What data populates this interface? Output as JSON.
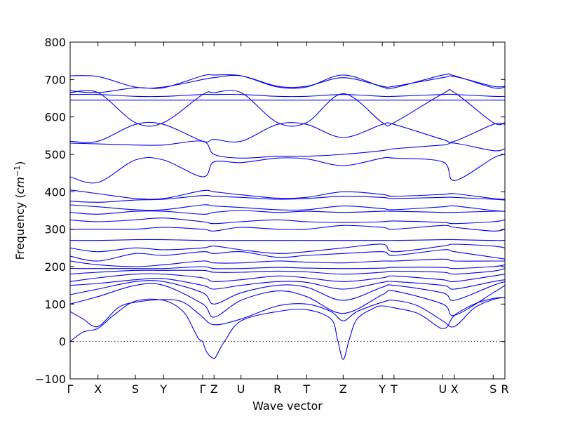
{
  "chart_data": {
    "type": "line",
    "xlabel": "Wave vector",
    "ylabel": "Frequency (cm⁻¹)",
    "ylim": [
      -100,
      800
    ],
    "yticks": [
      -100,
      0,
      100,
      200,
      300,
      400,
      500,
      600,
      700,
      800
    ],
    "xticks": [
      "Γ",
      "X",
      "S",
      "Y",
      "Γ",
      "Z",
      "U",
      "R",
      "T",
      "Z",
      "Y",
      "T",
      "U",
      "X",
      "S",
      "R"
    ],
    "xtick_positions": [
      0.0,
      0.064,
      0.15,
      0.215,
      0.305,
      0.331,
      0.393,
      0.477,
      0.544,
      0.628,
      0.718,
      0.745,
      0.857,
      0.884,
      0.973,
      1.0
    ],
    "zero_line": "dotted",
    "series_color": "#0000ee",
    "bands": [
      {
        "x": [
          0,
          0.0,
          0.064,
          0.15,
          0.215,
          0.305,
          0.331,
          0.393,
          0.477,
          0.544,
          0.628,
          0.718,
          0.745,
          0.857,
          0.884,
          0.973,
          1.0
        ],
        "y": null
      },
      {
        "x": [
          0.0,
          0.03,
          0.064,
          0.1,
          0.15,
          0.215,
          0.26,
          0.285,
          0.295,
          0.305
        ],
        "y": [
          0,
          25,
          35,
          70,
          108,
          110,
          80,
          30,
          8,
          0
        ]
      },
      {
        "x": [
          0.305,
          0.315,
          0.331,
          0.34,
          0.355,
          0.393,
          0.477,
          0.544,
          0.6,
          0.615,
          0.628,
          0.642,
          0.66,
          0.7,
          0.718,
          0.745,
          0.8,
          0.845,
          0.857,
          0.868,
          0.884,
          0.93,
          0.973,
          1.0
        ],
        "y": [
          0,
          -30,
          -45,
          -30,
          0,
          55,
          80,
          85,
          60,
          5,
          -48,
          5,
          60,
          90,
          95,
          90,
          75,
          40,
          35,
          40,
          70,
          100,
          115,
          118
        ]
      },
      {
        "x": [
          0.0,
          0.03,
          0.064,
          0.11,
          0.15,
          0.215,
          0.26,
          0.3,
          0.331,
          0.393,
          0.477,
          0.544,
          0.6,
          0.628,
          0.66,
          0.718,
          0.745,
          0.8,
          0.857,
          0.884,
          0.93,
          0.973,
          1.0
        ],
        "y": [
          80,
          60,
          40,
          90,
          105,
          112,
          105,
          70,
          45,
          60,
          95,
          100,
          80,
          55,
          80,
          105,
          110,
          95,
          55,
          40,
          90,
          112,
          118
        ]
      },
      {
        "x": [
          0.0,
          0.064,
          0.15,
          0.215,
          0.305,
          0.331,
          0.393,
          0.477,
          0.544,
          0.628,
          0.718,
          0.745,
          0.857,
          0.884,
          0.973,
          1.0
        ],
        "y": [
          100,
          120,
          150,
          150,
          100,
          65,
          110,
          135,
          120,
          75,
          125,
          135,
          100,
          70,
          130,
          150
        ]
      },
      {
        "x": [
          0.0,
          0.064,
          0.15,
          0.215,
          0.305,
          0.331,
          0.393,
          0.477,
          0.544,
          0.628,
          0.718,
          0.745,
          0.857,
          0.884,
          0.973,
          1.0
        ],
        "y": [
          125,
          140,
          160,
          160,
          130,
          100,
          130,
          150,
          145,
          110,
          145,
          150,
          130,
          110,
          150,
          160
        ]
      },
      {
        "x": [
          0.0,
          0.064,
          0.15,
          0.215,
          0.305,
          0.331,
          0.393,
          0.477,
          0.544,
          0.628,
          0.718,
          0.745,
          0.857,
          0.884,
          0.973,
          1.0
        ],
        "y": [
          150,
          155,
          165,
          168,
          150,
          140,
          150,
          160,
          158,
          140,
          158,
          160,
          150,
          140,
          160,
          165
        ]
      },
      {
        "x": [
          0.0,
          0.064,
          0.15,
          0.215,
          0.305,
          0.331,
          0.393,
          0.477,
          0.544,
          0.628,
          0.718,
          0.745,
          0.857,
          0.884,
          0.973,
          1.0
        ],
        "y": [
          160,
          170,
          180,
          180,
          170,
          160,
          165,
          175,
          170,
          160,
          170,
          175,
          165,
          160,
          175,
          180
        ]
      },
      {
        "x": [
          0.0,
          0.064,
          0.15,
          0.215,
          0.305,
          0.331,
          0.393,
          0.477,
          0.544,
          0.628,
          0.718,
          0.745,
          0.857,
          0.884,
          0.973,
          1.0
        ],
        "y": [
          180,
          185,
          190,
          190,
          190,
          185,
          185,
          188,
          186,
          180,
          185,
          188,
          185,
          180,
          188,
          195
        ]
      },
      {
        "x": [
          0.0,
          0.064,
          0.15,
          0.215,
          0.305,
          0.331,
          0.393,
          0.477,
          0.544,
          0.628,
          0.718,
          0.745,
          0.857,
          0.884,
          0.973,
          1.0
        ],
        "y": [
          195,
          195,
          195,
          195,
          200,
          195,
          195,
          198,
          196,
          195,
          196,
          198,
          198,
          195,
          200,
          205
        ]
      },
      {
        "x": [
          0.0,
          0.064,
          0.15,
          0.215,
          0.305,
          0.331,
          0.393,
          0.477,
          0.544,
          0.628,
          0.718,
          0.745,
          0.857,
          0.884,
          0.973,
          1.0
        ],
        "y": [
          215,
          205,
          200,
          205,
          215,
          210,
          210,
          215,
          212,
          210,
          215,
          215,
          220,
          215,
          215,
          215
        ]
      },
      {
        "x": [
          0.0,
          0.064,
          0.15,
          0.215,
          0.305,
          0.331,
          0.393,
          0.477,
          0.544,
          0.628,
          0.718,
          0.745,
          0.857,
          0.884,
          0.973,
          1.0
        ],
        "y": [
          228,
          215,
          235,
          230,
          240,
          235,
          240,
          225,
          230,
          235,
          240,
          230,
          245,
          240,
          225,
          220
        ]
      },
      {
        "x": [
          0.0,
          0.064,
          0.15,
          0.215,
          0.305,
          0.331,
          0.393,
          0.477,
          0.544,
          0.628,
          0.718,
          0.745,
          0.857,
          0.884,
          0.973,
          1.0
        ],
        "y": [
          250,
          240,
          250,
          245,
          250,
          255,
          245,
          235,
          240,
          250,
          260,
          240,
          255,
          260,
          255,
          250
        ]
      },
      {
        "x": [
          0.0,
          0.064,
          0.15,
          0.215,
          0.305,
          0.331,
          0.393,
          0.477,
          0.544,
          0.628,
          0.718,
          0.745,
          0.857,
          0.884,
          0.973,
          1.0
        ],
        "y": [
          270,
          270,
          272,
          272,
          270,
          270,
          270,
          270,
          270,
          270,
          270,
          270,
          272,
          272,
          270,
          270
        ]
      },
      {
        "x": [
          0.0,
          0.064,
          0.15,
          0.215,
          0.305,
          0.331,
          0.393,
          0.477,
          0.544,
          0.628,
          0.718,
          0.745,
          0.857,
          0.884,
          0.973,
          1.0
        ],
        "y": [
          300,
          300,
          300,
          305,
          300,
          295,
          305,
          300,
          300,
          310,
          305,
          300,
          310,
          305,
          295,
          300
        ]
      },
      {
        "x": [
          0.0,
          0.064,
          0.15,
          0.215,
          0.305,
          0.331,
          0.393,
          0.477,
          0.544,
          0.628,
          0.718,
          0.745,
          0.857,
          0.884,
          0.973,
          1.0
        ],
        "y": [
          325,
          320,
          325,
          330,
          320,
          315,
          320,
          325,
          320,
          318,
          320,
          322,
          318,
          315,
          320,
          325
        ]
      },
      {
        "x": [
          0.0,
          0.064,
          0.15,
          0.215,
          0.305,
          0.331,
          0.393,
          0.477,
          0.544,
          0.628,
          0.718,
          0.745,
          0.857,
          0.884,
          0.973,
          1.0
        ],
        "y": [
          345,
          340,
          348,
          348,
          340,
          345,
          350,
          345,
          348,
          345,
          348,
          348,
          345,
          345,
          348,
          348
        ]
      },
      {
        "x": [
          0.0,
          0.064,
          0.15,
          0.215,
          0.305,
          0.331,
          0.393,
          0.477,
          0.544,
          0.628,
          0.718,
          0.745,
          0.857,
          0.884,
          0.973,
          1.0
        ],
        "y": [
          365,
          360,
          352,
          352,
          365,
          362,
          358,
          352,
          352,
          362,
          355,
          352,
          360,
          362,
          350,
          348
        ]
      },
      {
        "x": [
          0.0,
          0.064,
          0.15,
          0.215,
          0.305,
          0.331,
          0.393,
          0.477,
          0.544,
          0.628,
          0.718,
          0.745,
          0.857,
          0.884,
          0.973,
          1.0
        ],
        "y": [
          375,
          372,
          378,
          380,
          390,
          388,
          385,
          380,
          382,
          388,
          385,
          382,
          385,
          385,
          380,
          378
        ]
      },
      {
        "x": [
          0.0,
          0.064,
          0.15,
          0.215,
          0.305,
          0.331,
          0.393,
          0.477,
          0.544,
          0.628,
          0.718,
          0.745,
          0.857,
          0.884,
          0.973,
          1.0
        ],
        "y": [
          405,
          395,
          382,
          382,
          403,
          400,
          392,
          383,
          385,
          400,
          393,
          388,
          393,
          395,
          382,
          380
        ]
      },
      {
        "x": [
          0.0,
          0.064,
          0.15,
          0.215,
          0.305,
          0.331,
          0.393,
          0.477,
          0.544,
          0.628,
          0.718,
          0.745,
          0.857,
          0.884,
          0.973,
          1.0
        ],
        "y": [
          440,
          425,
          485,
          485,
          440,
          480,
          478,
          490,
          488,
          470,
          490,
          490,
          480,
          430,
          490,
          500
        ]
      },
      {
        "x": [
          0.0,
          0.064,
          0.15,
          0.215,
          0.305,
          0.331,
          0.393,
          0.477,
          0.544,
          0.628,
          0.718,
          0.745,
          0.857,
          0.884,
          0.973,
          1.0
        ],
        "y": [
          530,
          528,
          525,
          525,
          535,
          500,
          490,
          495,
          495,
          500,
          510,
          515,
          525,
          530,
          510,
          515
        ]
      },
      {
        "x": [
          0.0,
          0.064,
          0.15,
          0.215,
          0.305,
          0.331,
          0.393,
          0.477,
          0.544,
          0.628,
          0.718,
          0.745,
          0.857,
          0.884,
          0.973,
          1.0
        ],
        "y": [
          535,
          535,
          580,
          580,
          535,
          540,
          535,
          580,
          580,
          545,
          580,
          580,
          540,
          535,
          580,
          580
        ]
      },
      {
        "x": [
          0.0,
          0.064,
          0.15,
          0.215,
          0.305,
          0.331,
          0.393,
          0.477,
          0.544,
          0.628,
          0.718,
          0.745,
          0.857,
          0.884,
          0.973,
          1.0
        ],
        "y": [
          645,
          645,
          645,
          645,
          645,
          645,
          645,
          645,
          645,
          645,
          645,
          645,
          645,
          645,
          645,
          645
        ]
      },
      {
        "x": [
          0.0,
          0.064,
          0.15,
          0.215,
          0.305,
          0.331,
          0.393,
          0.477,
          0.544,
          0.628,
          0.718,
          0.745,
          0.857,
          0.884,
          0.973,
          1.0
        ],
        "y": [
          660,
          660,
          655,
          655,
          660,
          660,
          660,
          655,
          655,
          660,
          655,
          655,
          660,
          660,
          655,
          655
        ]
      },
      {
        "x": [
          0.0,
          0.064,
          0.15,
          0.215,
          0.305,
          0.331,
          0.393,
          0.477,
          0.544,
          0.628,
          0.718,
          0.745,
          0.857,
          0.884,
          0.973,
          1.0
        ],
        "y": [
          665,
          665,
          585,
          585,
          660,
          665,
          665,
          585,
          585,
          662,
          585,
          585,
          662,
          665,
          585,
          585
        ]
      },
      {
        "x": [
          0.0,
          0.064,
          0.15,
          0.215,
          0.305,
          0.331,
          0.393,
          0.477,
          0.544,
          0.628,
          0.718,
          0.745,
          0.857,
          0.884,
          0.973,
          1.0
        ],
        "y": [
          670,
          665,
          678,
          678,
          710,
          712,
          710,
          680,
          680,
          712,
          680,
          678,
          712,
          710,
          678,
          680
        ]
      },
      {
        "x": [
          0.0,
          0.064,
          0.15,
          0.215,
          0.305,
          0.331,
          0.393,
          0.477,
          0.544,
          0.628,
          0.718,
          0.745,
          0.857,
          0.884,
          0.973,
          1.0
        ],
        "y": [
          710,
          708,
          680,
          680,
          700,
          705,
          710,
          682,
          682,
          705,
          682,
          682,
          705,
          708,
          682,
          682
        ]
      }
    ]
  },
  "chart": {
    "xlabel": "Wave vector",
    "ylabel_prefix": "Frequency (",
    "ylabel_unit": "cm",
    "ylabel_exp": "−1",
    "ylabel_suffix": ")"
  }
}
